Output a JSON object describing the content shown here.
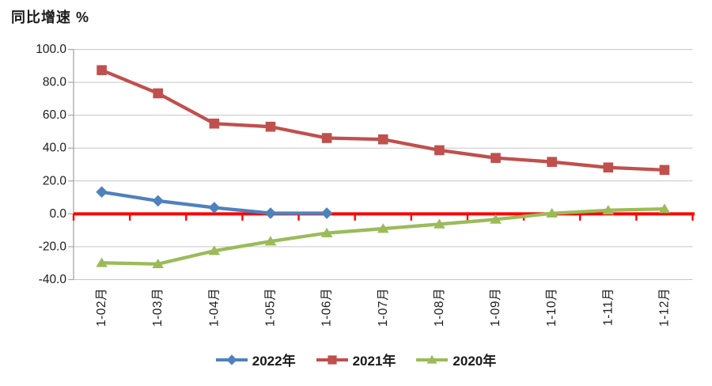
{
  "chart_data": {
    "type": "line",
    "title": "同比增速 %",
    "categories": [
      "1-02月",
      "1-03月",
      "1-04月",
      "1-05月",
      "1-06月",
      "1-07月",
      "1-08月",
      "1-09月",
      "1-10月",
      "1-11月",
      "1-12月"
    ],
    "series": [
      {
        "name": "2022年",
        "color": "#4F81BD",
        "marker": "diamond",
        "values": [
          13.3,
          7.9,
          3.8,
          0.4,
          0.4,
          null,
          null,
          null,
          null,
          null,
          null
        ]
      },
      {
        "name": "2021年",
        "color": "#C0504D",
        "marker": "square",
        "values": [
          87.4,
          73.3,
          54.9,
          53.0,
          46.1,
          45.3,
          38.7,
          34.0,
          31.6,
          28.2,
          26.7
        ]
      },
      {
        "name": "2020年",
        "color": "#9BBB59",
        "marker": "triangle",
        "values": [
          -29.8,
          -30.5,
          -22.5,
          -16.7,
          -11.7,
          -9.0,
          -6.3,
          -3.4,
          0.3,
          2.2,
          3.0
        ]
      }
    ],
    "xlabel": "",
    "ylabel": "",
    "ylim": [
      -40,
      100
    ],
    "ytick_step": 20,
    "ytick_labels": [
      "100.0",
      "80.0",
      "60.0",
      "40.0",
      "20.0",
      "0.0",
      "-20.0",
      "-40.0"
    ],
    "grid": true,
    "legend_position": "bottom",
    "zero_line_value": 0,
    "colors": {
      "zero_line": "#FF0000",
      "gridline": "#C6C6C6",
      "axis_line": "#A6A6A6",
      "text": "#1C1C1C"
    }
  }
}
